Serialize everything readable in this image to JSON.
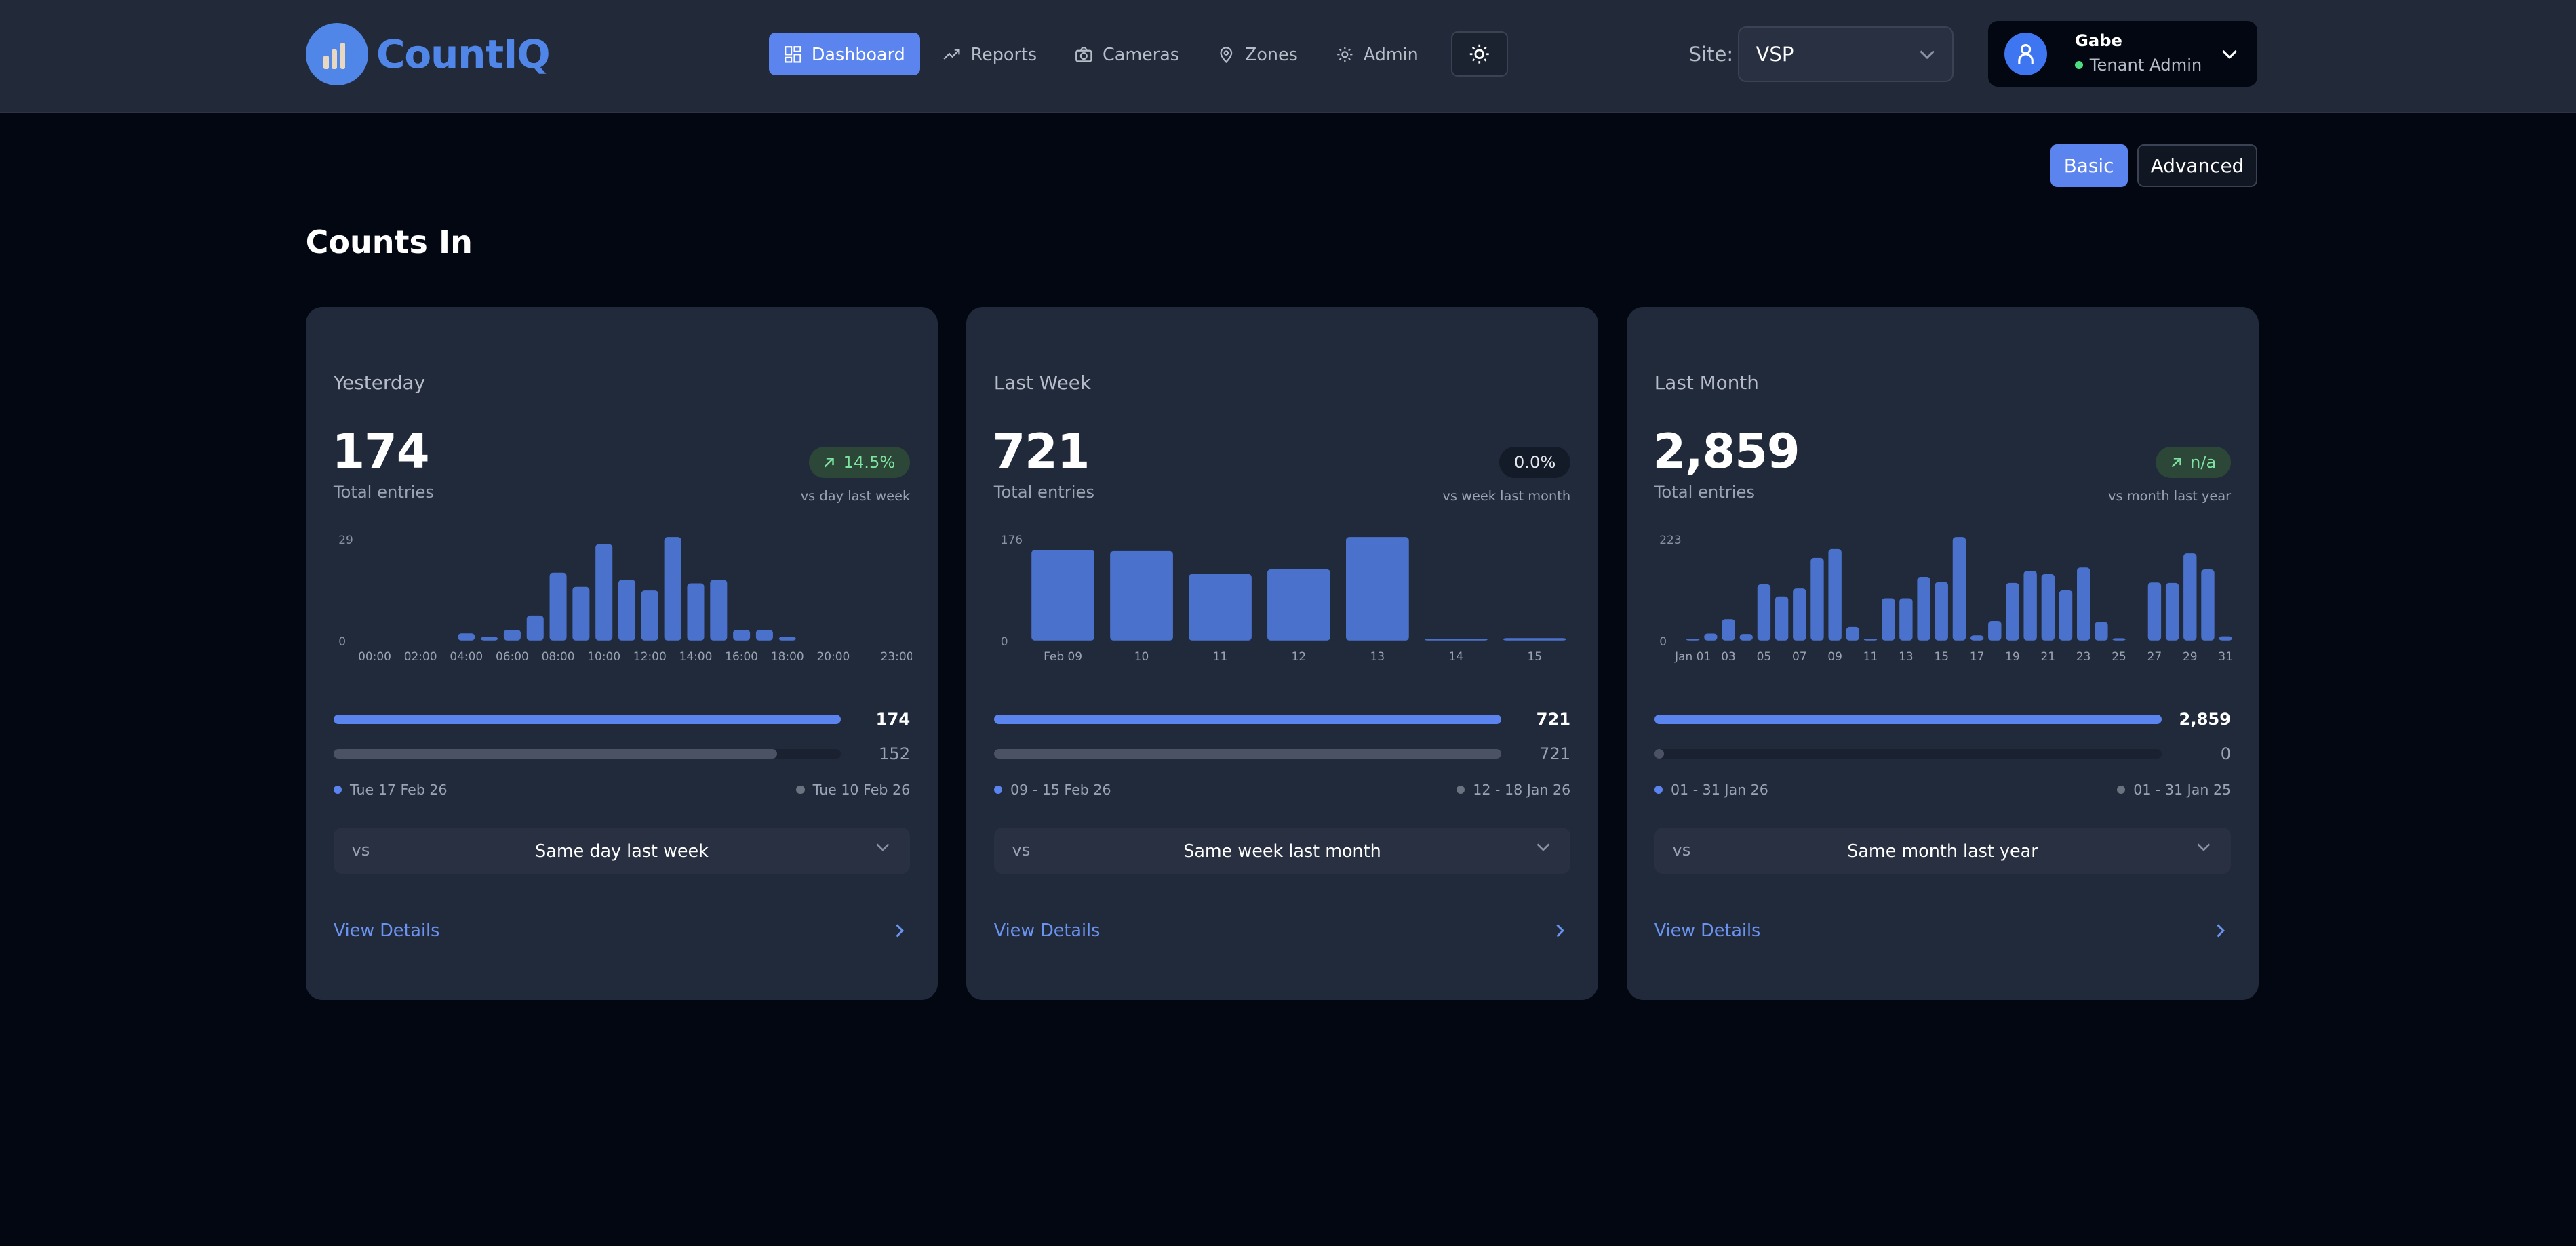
{
  "header": {
    "brand": "CountIQ",
    "nav": [
      {
        "label": "Dashboard",
        "icon": "dashboard-grid-icon",
        "active": true
      },
      {
        "label": "Reports",
        "icon": "trending-up-icon",
        "active": false
      },
      {
        "label": "Cameras",
        "icon": "camera-icon",
        "active": false
      },
      {
        "label": "Zones",
        "icon": "map-pin-icon",
        "active": false
      },
      {
        "label": "Admin",
        "icon": "gear-icon",
        "active": false
      }
    ],
    "theme_icon": "sun-icon",
    "site_label": "Site:",
    "site_value": "VSP",
    "user": {
      "name": "Gabe",
      "role": "Tenant Admin",
      "status_color": "#4ade80"
    }
  },
  "view_modes": {
    "basic": "Basic",
    "advanced": "Advanced",
    "selected": "Basic"
  },
  "section_title": "Counts In",
  "colors": {
    "accent": "#5b84ee",
    "bar": "#4a72cc",
    "previous": "#4b5263",
    "positive": "#7ee2a0"
  },
  "cards": [
    {
      "title": "Yesterday",
      "total": "174",
      "total_label": "Total entries",
      "change": "14.5%",
      "change_trend": "up",
      "change_note": "vs day last week",
      "current_value": "174",
      "previous_value": "152",
      "current_period": "Tue 17 Feb 26",
      "previous_period": "Tue 10 Feb 26",
      "compare_prefix": "vs",
      "compare_option": "Same day last week",
      "details_label": "View Details"
    },
    {
      "title": "Last Week",
      "total": "721",
      "total_label": "Total entries",
      "change": "0.0%",
      "change_trend": "flat",
      "change_note": "vs week last month",
      "current_value": "721",
      "previous_value": "721",
      "current_period": "09 - 15 Feb 26",
      "previous_period": "12 - 18 Jan 26",
      "compare_prefix": "vs",
      "compare_option": "Same week last month",
      "details_label": "View Details"
    },
    {
      "title": "Last Month",
      "total": "2,859",
      "total_label": "Total entries",
      "change": "n/a",
      "change_trend": "up",
      "change_note": "vs month last year",
      "current_value": "2,859",
      "previous_value": "0",
      "current_period": "01 - 31 Jan 26",
      "previous_period": "01 - 31 Jan 25",
      "compare_prefix": "vs",
      "compare_option": "Same month last year",
      "details_label": "View Details"
    }
  ],
  "chart_data": [
    {
      "type": "bar",
      "categories": [
        "00:00",
        "01:00",
        "02:00",
        "03:00",
        "04:00",
        "05:00",
        "06:00",
        "07:00",
        "08:00",
        "09:00",
        "10:00",
        "11:00",
        "12:00",
        "13:00",
        "14:00",
        "15:00",
        "16:00",
        "17:00",
        "18:00",
        "19:00",
        "20:00",
        "21:00",
        "22:00",
        "23:00"
      ],
      "values": [
        0,
        0,
        0,
        0,
        2,
        1,
        3,
        7,
        19,
        15,
        27,
        17,
        14,
        29,
        16,
        17,
        3,
        3,
        1,
        0,
        0,
        0,
        0,
        0
      ],
      "tick_labels": [
        "00:00",
        "02:00",
        "04:00",
        "06:00",
        "08:00",
        "10:00",
        "12:00",
        "14:00",
        "16:00",
        "18:00",
        "20:00",
        "23:00"
      ],
      "y_tick_labels": [
        "29",
        "0"
      ],
      "ylim": [
        0,
        29
      ],
      "grid": false
    },
    {
      "type": "bar",
      "categories": [
        "Feb 09",
        "10",
        "11",
        "12",
        "13",
        "14",
        "15"
      ],
      "values": [
        154,
        152,
        113,
        121,
        176,
        1,
        4
      ],
      "tick_labels": [
        "Feb 09",
        "10",
        "11",
        "12",
        "13",
        "14",
        "15"
      ],
      "y_tick_labels": [
        "176",
        "0"
      ],
      "ylim": [
        0,
        176
      ],
      "grid": false
    },
    {
      "type": "bar",
      "categories": [
        "Jan 01",
        "02",
        "03",
        "04",
        "05",
        "06",
        "07",
        "08",
        "09",
        "10",
        "11",
        "12",
        "13",
        "14",
        "15",
        "16",
        "17",
        "18",
        "19",
        "20",
        "21",
        "22",
        "23",
        "24",
        "25",
        "26",
        "27",
        "28",
        "29",
        "30",
        "31"
      ],
      "values": [
        3,
        15,
        46,
        14,
        121,
        95,
        112,
        178,
        197,
        29,
        2,
        91,
        91,
        137,
        126,
        223,
        11,
        42,
        124,
        150,
        143,
        108,
        157,
        40,
        5,
        0,
        125,
        124,
        188,
        153,
        9
      ],
      "tick_labels": [
        "Jan 01",
        "03",
        "05",
        "07",
        "09",
        "11",
        "13",
        "15",
        "17",
        "19",
        "21",
        "23",
        "25",
        "27",
        "29",
        "31"
      ],
      "y_tick_labels": [
        "223",
        "0"
      ],
      "ylim": [
        0,
        223
      ],
      "grid": false
    }
  ]
}
